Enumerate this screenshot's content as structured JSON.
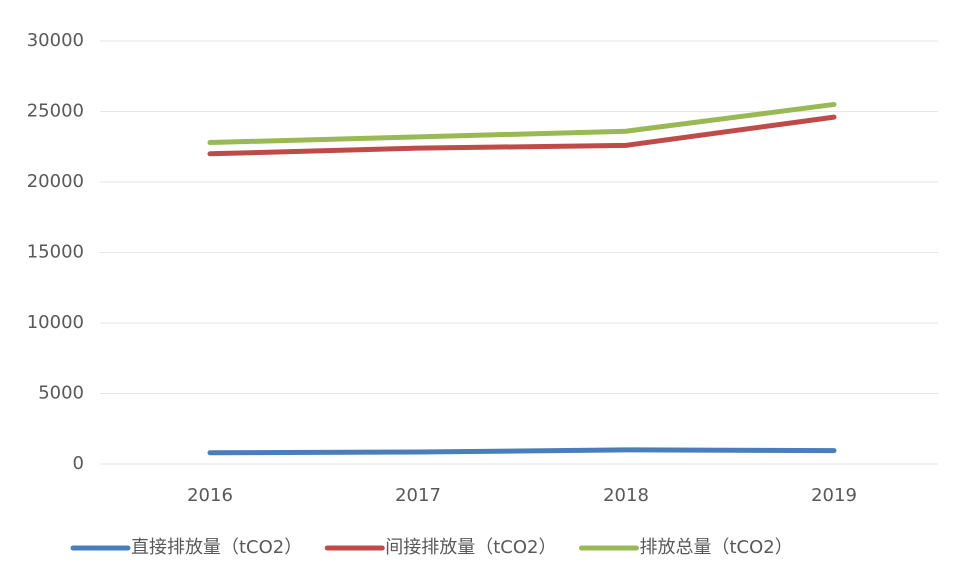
{
  "chart_data": {
    "type": "line",
    "categories": [
      "2016",
      "2017",
      "2018",
      "2019"
    ],
    "series": [
      {
        "name": "直接排放量（tCO2）",
        "color": "#4a7ebb",
        "values": [
          800,
          850,
          1000,
          950
        ]
      },
      {
        "name": "间接排放量（tCO2）",
        "color": "#be4b48",
        "values": [
          22000,
          22400,
          22600,
          24600
        ]
      },
      {
        "name": "排放总量（tCO2）",
        "color": "#98b954",
        "values": [
          22800,
          23200,
          23600,
          25500
        ]
      }
    ],
    "ylim": [
      0,
      30000
    ],
    "yticks": [
      0,
      5000,
      10000,
      15000,
      20000,
      25000,
      30000
    ],
    "grid": true,
    "legend": "bottom"
  }
}
